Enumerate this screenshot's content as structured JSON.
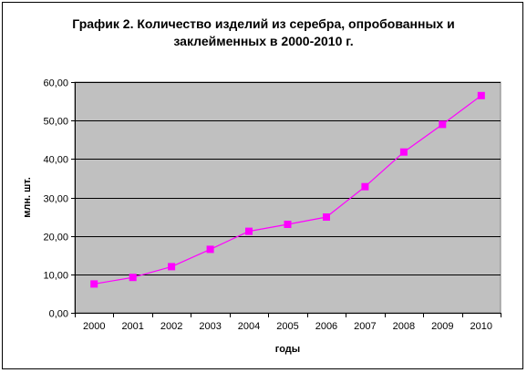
{
  "chart_data": {
    "type": "line",
    "title_line1": "График 2. Количество изделий из серебра, опробованных и",
    "title_line2": "заклейменных в 2000-2010 г.",
    "xlabel": "годы",
    "ylabel": "млн. шт.",
    "categories": [
      "2000",
      "2001",
      "2002",
      "2003",
      "2004",
      "2005",
      "2006",
      "2007",
      "2008",
      "2009",
      "2010"
    ],
    "series": [
      {
        "values": [
          7.5,
          9.2,
          12.0,
          16.5,
          21.2,
          23.0,
          24.9,
          32.8,
          41.8,
          49.0,
          56.5
        ],
        "color": "#FF00FF"
      }
    ],
    "yticks": [
      "0,00",
      "10,00",
      "20,00",
      "30,00",
      "40,00",
      "50,00",
      "60,00"
    ],
    "ylim": [
      0,
      60
    ],
    "grid": true,
    "plot_background": "#C0C0C0",
    "legend": "none"
  }
}
